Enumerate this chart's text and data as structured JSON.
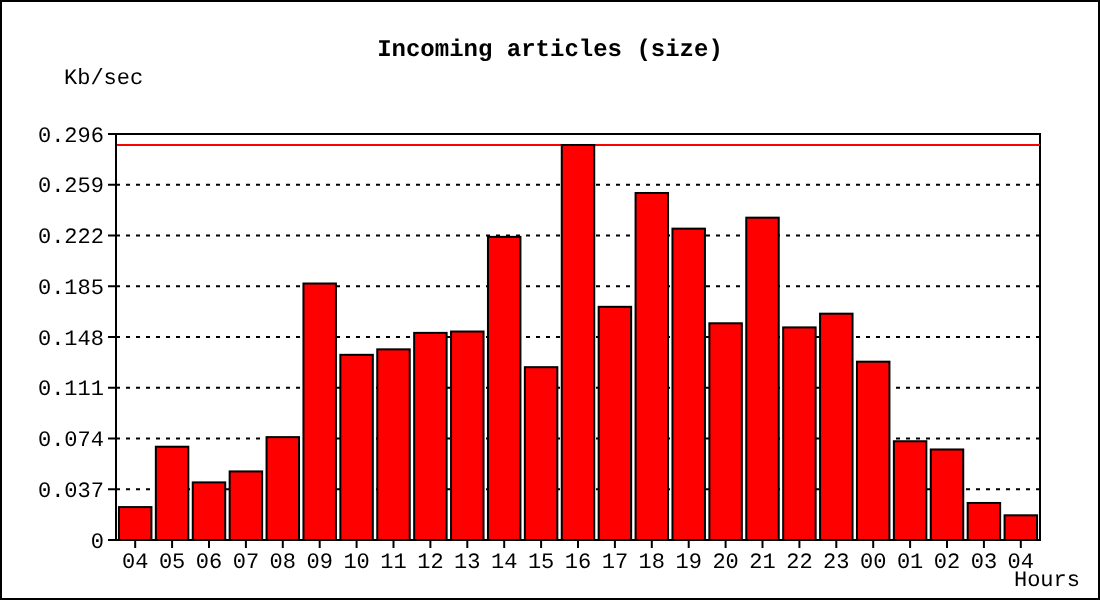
{
  "chart_data": {
    "type": "bar",
    "title": "Incoming articles (size)",
    "ylabel": "Kb/sec",
    "xlabel": "Hours",
    "categories": [
      "04",
      "05",
      "06",
      "07",
      "08",
      "09",
      "10",
      "11",
      "12",
      "13",
      "14",
      "15",
      "16",
      "17",
      "18",
      "19",
      "20",
      "21",
      "22",
      "23",
      "00",
      "01",
      "02",
      "03",
      "04"
    ],
    "series": [
      {
        "color": "#ff0000",
        "values": [
          0.024,
          0.068,
          0.042,
          0.05,
          0.075,
          0.187,
          0.135,
          0.139,
          0.151,
          0.152,
          0.221,
          0.126,
          0.288,
          0.17,
          0.253,
          0.227,
          0.158,
          0.235,
          0.155,
          0.165,
          0.13,
          0.072,
          0.066,
          0.027,
          0.018
        ]
      }
    ],
    "ylim": [
      0,
      0.296
    ],
    "yticks": [
      0,
      0.037,
      0.074,
      0.111,
      0.148,
      0.185,
      0.222,
      0.259,
      0.296
    ],
    "grid": "y",
    "ref_lines": [
      {
        "axis": "y",
        "value": 0.288,
        "color": "#ff0000",
        "line_style": "solid"
      }
    ]
  }
}
